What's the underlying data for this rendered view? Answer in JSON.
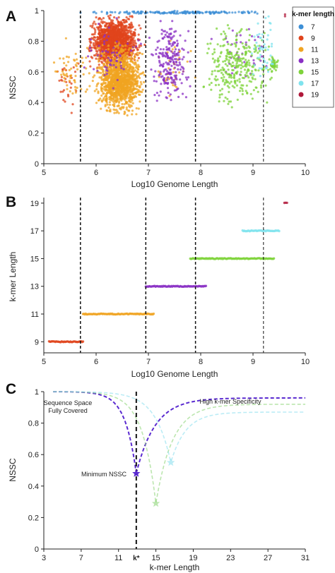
{
  "chart_data": [
    {
      "panel": "A",
      "type": "scatter",
      "xlabel": "Log10 Genome Length",
      "ylabel": "NSSC",
      "xlim": [
        5,
        10
      ],
      "ylim": [
        0,
        1
      ],
      "xticks": [
        "5",
        "6",
        "7",
        "8",
        "9",
        "10"
      ],
      "yticks": [
        "0",
        "0.2",
        "0.4",
        "0.6",
        "0.8",
        "1"
      ],
      "vlines": [
        5.7,
        6.95,
        7.9,
        9.2
      ],
      "legend": {
        "title": "k-mer length",
        "placement": "top-right",
        "entries": [
          {
            "label": "7",
            "color": "#3d8fd6"
          },
          {
            "label": "9",
            "color": "#e0441c"
          },
          {
            "label": "11",
            "color": "#f0a422"
          },
          {
            "label": "13",
            "color": "#8a2fc4"
          },
          {
            "label": "15",
            "color": "#7ed33a"
          },
          {
            "label": "17",
            "color": "#7fe3ee"
          },
          {
            "label": "19",
            "color": "#b0183a"
          }
        ]
      },
      "series": [
        {
          "name": "7",
          "color": "#3d8fd6",
          "clusters": [
            {
              "x": [
                5.0,
                9.9
              ],
              "y": [
                0.975,
                1.0
              ],
              "n": 160
            }
          ]
        },
        {
          "name": "9",
          "color": "#e0441c",
          "clusters": [
            {
              "x": [
                5.75,
                6.95
              ],
              "y": [
                0.6,
                1.0
              ],
              "n": 1400
            },
            {
              "x": [
                5.1,
                5.75
              ],
              "y": [
                0.3,
                0.75
              ],
              "n": 30
            }
          ]
        },
        {
          "name": "11",
          "color": "#f0a422",
          "clusters": [
            {
              "x": [
                5.9,
                7.0
              ],
              "y": [
                0.28,
                0.82
              ],
              "n": 1300
            },
            {
              "x": [
                5.1,
                6.0
              ],
              "y": [
                0.35,
                0.85
              ],
              "n": 60
            },
            {
              "x": [
                7.0,
                8.0
              ],
              "y": [
                0.4,
                0.9
              ],
              "n": 40
            }
          ]
        },
        {
          "name": "13",
          "color": "#8a2fc4",
          "clusters": [
            {
              "x": [
                6.95,
                7.9
              ],
              "y": [
                0.3,
                1.0
              ],
              "n": 220
            },
            {
              "x": [
                5.7,
                7.0
              ],
              "y": [
                0.4,
                1.0
              ],
              "n": 60
            },
            {
              "x": [
                7.9,
                9.6
              ],
              "y": [
                0.4,
                1.0
              ],
              "n": 40
            }
          ]
        },
        {
          "name": "15",
          "color": "#7ed33a",
          "clusters": [
            {
              "x": [
                7.9,
                9.5
              ],
              "y": [
                0.3,
                0.98
              ],
              "n": 300
            },
            {
              "x": [
                9.3,
                9.5
              ],
              "y": [
                0.58,
                0.7
              ],
              "n": 40
            }
          ]
        },
        {
          "name": "17",
          "color": "#7fe3ee",
          "clusters": [
            {
              "x": [
                8.9,
                9.5
              ],
              "y": [
                0.5,
                1.0
              ],
              "n": 50
            }
          ]
        },
        {
          "name": "19",
          "color": "#b0183a",
          "clusters": [
            {
              "x": [
                9.55,
                9.7
              ],
              "y": [
                0.95,
                0.99
              ],
              "n": 2
            }
          ]
        }
      ]
    },
    {
      "panel": "B",
      "type": "scatter",
      "xlabel": "Log10 Genome Length",
      "ylabel": "k-mer Length",
      "xlim": [
        5,
        10
      ],
      "ylim": [
        8.2,
        19.4
      ],
      "xticks": [
        "5",
        "6",
        "7",
        "8",
        "9",
        "10"
      ],
      "yticks": [
        "9",
        "11",
        "13",
        "15",
        "17",
        "19"
      ],
      "vlines": [
        5.7,
        6.95,
        7.9,
        9.2
      ],
      "series": [
        {
          "name": "9",
          "color": "#e0441c",
          "y": 9,
          "x_range": [
            5.1,
            5.75
          ]
        },
        {
          "name": "11",
          "color": "#f0a422",
          "y": 11,
          "x_range": [
            5.75,
            7.1
          ]
        },
        {
          "name": "13",
          "color": "#8a2fc4",
          "y": 13,
          "x_range": [
            6.95,
            8.1
          ]
        },
        {
          "name": "15",
          "color": "#7ed33a",
          "y": 15,
          "x_range": [
            7.8,
            9.4
          ]
        },
        {
          "name": "17",
          "color": "#7fe3ee",
          "y": 17,
          "x_range": [
            8.8,
            9.5
          ]
        },
        {
          "name": "19",
          "color": "#b0183a",
          "y": 19,
          "x_range": [
            9.6,
            9.65
          ]
        }
      ]
    },
    {
      "panel": "C",
      "type": "line",
      "xlabel": "k-mer Length",
      "ylabel": "NSSC",
      "xlim": [
        3,
        31
      ],
      "ylim": [
        0,
        1
      ],
      "xticks": [
        "3",
        "7",
        "11",
        "15",
        "19",
        "23",
        "27",
        "31"
      ],
      "yticks": [
        "0",
        "0.2",
        "0.4",
        "0.6",
        "0.8",
        "1"
      ],
      "kstar": {
        "x": 12.9,
        "label": "k*"
      },
      "annotations": [
        {
          "text": [
            "Sequence Space",
            "Fully Covered"
          ]
        },
        {
          "text": [
            "High k-mer Specificity"
          ]
        },
        {
          "text": [
            "Minimum NSSC"
          ]
        }
      ],
      "series": [
        {
          "color": "#5a2ad0",
          "min_x": 12.9,
          "min_y": 0.48,
          "end_y": 0.96,
          "opacity": 1.0
        },
        {
          "color": "#8fd67a",
          "min_x": 15.0,
          "min_y": 0.29,
          "end_y": 0.92,
          "opacity": 0.6
        },
        {
          "color": "#8ddfee",
          "min_x": 16.6,
          "min_y": 0.55,
          "end_y": 0.87,
          "opacity": 0.6
        }
      ]
    }
  ]
}
